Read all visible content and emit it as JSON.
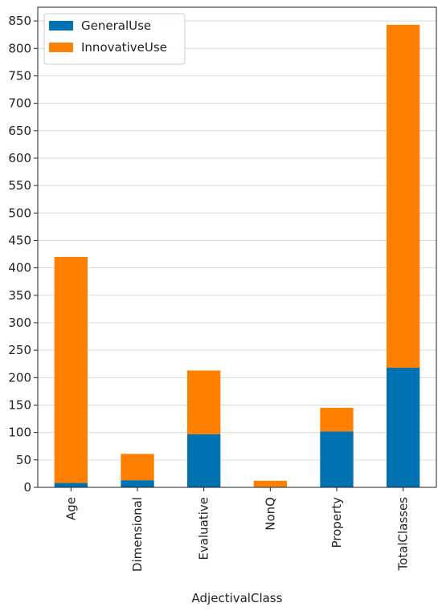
{
  "chart_data": {
    "type": "bar",
    "stacked": true,
    "xlabel": "AdjectivalClass",
    "ylabel": "",
    "categories": [
      "Age",
      "Dimensional",
      "Evaluative",
      "NonQ",
      "Property",
      "TotalClasses"
    ],
    "series": [
      {
        "name": "GeneralUse",
        "color": "#0072B2",
        "values": [
          8,
          13,
          97,
          1,
          102,
          218
        ]
      },
      {
        "name": "InnovativeUse",
        "color": "#FF8000",
        "values": [
          412,
          48,
          116,
          11,
          43,
          625
        ]
      }
    ],
    "ylim": [
      0,
      875
    ],
    "yticks": [
      0,
      50,
      100,
      150,
      200,
      250,
      300,
      350,
      400,
      450,
      500,
      550,
      600,
      650,
      700,
      750,
      800,
      850
    ],
    "grid": "horizontal",
    "legend_position": "top-left"
  }
}
